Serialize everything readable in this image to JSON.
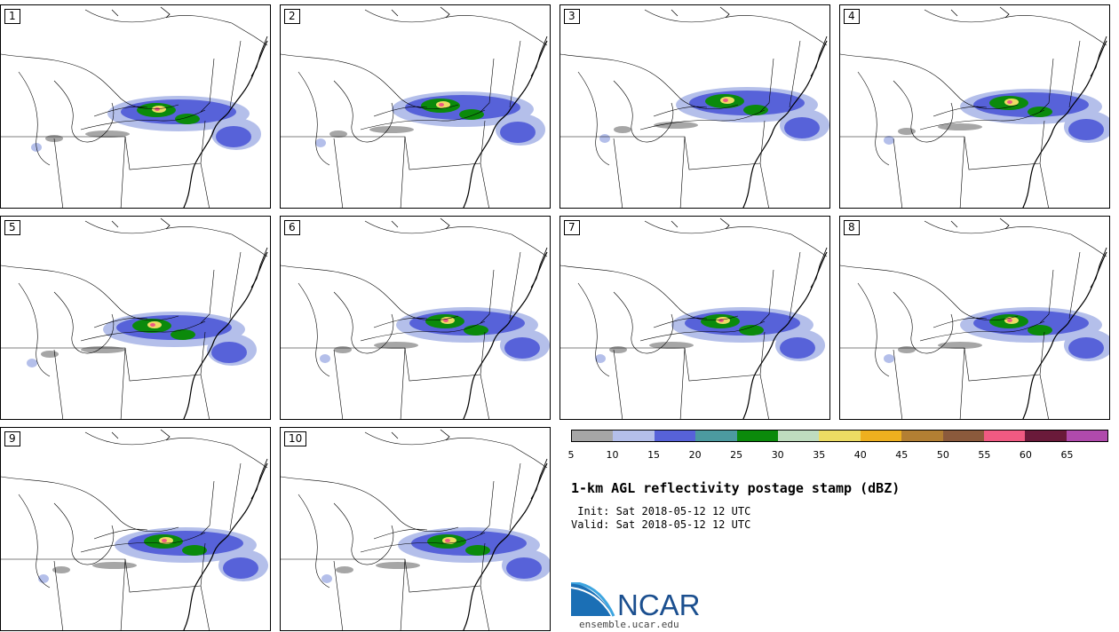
{
  "panels": [
    {
      "label": "1"
    },
    {
      "label": "2"
    },
    {
      "label": "3"
    },
    {
      "label": "4"
    },
    {
      "label": "5"
    },
    {
      "label": "6"
    },
    {
      "label": "7"
    },
    {
      "label": "8"
    },
    {
      "label": "9"
    },
    {
      "label": "10"
    }
  ],
  "colorbar": {
    "ticks": [
      "5",
      "10",
      "15",
      "20",
      "25",
      "30",
      "35",
      "40",
      "45",
      "50",
      "55",
      "60",
      "65"
    ],
    "colors": [
      "#a6a6a6",
      "#b4bfea",
      "#5762d9",
      "#4c9aa0",
      "#0b8a0b",
      "#bfdcbf",
      "#eddc63",
      "#eeb01f",
      "#b37f33",
      "#8b5a3c",
      "#f05a82",
      "#6a1a3a",
      "#b04aac"
    ]
  },
  "title": "1-km AGL reflectivity postage stamp (dBZ)",
  "init": " Init: Sat 2018-05-12 12 UTC",
  "valid": "Valid: Sat 2018-05-12 12 UTC",
  "logo": {
    "text": "NCAR",
    "url": "ensemble.ucar.edu",
    "color": "#1b4f8f"
  }
}
